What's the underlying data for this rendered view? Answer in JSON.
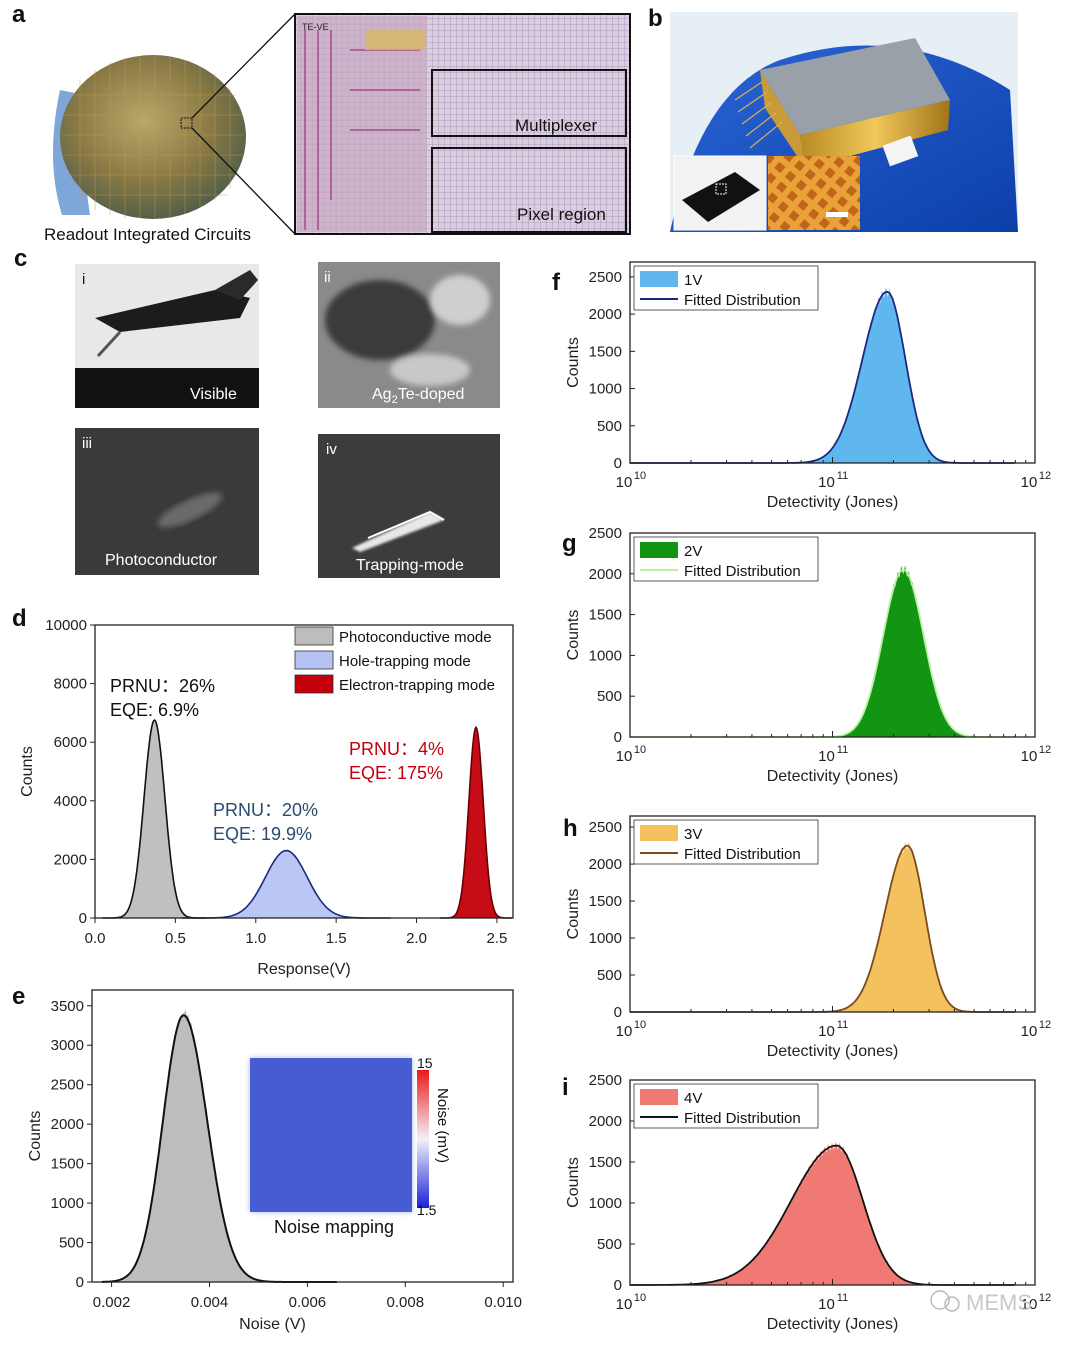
{
  "panels": {
    "a": {
      "label": "a",
      "caption": "Readout Integrated Circuits",
      "box_labels": [
        "Multiplexer",
        "Pixel region"
      ],
      "chip_text": "TE-VE"
    },
    "b": {
      "label": "b"
    },
    "c": {
      "label": "c",
      "images": [
        {
          "roman": "i",
          "caption": "Visible"
        },
        {
          "roman": "ii",
          "caption_pre": "Ag",
          "caption_sub": "2",
          "caption_post": "Te-doped"
        },
        {
          "roman": "iii",
          "caption": "Photoconductor"
        },
        {
          "roman": "iv",
          "caption": "Trapping-mode"
        }
      ]
    },
    "d": {
      "label": "d"
    },
    "e": {
      "label": "e"
    },
    "f": {
      "label": "f"
    },
    "g": {
      "label": "g"
    },
    "h": {
      "label": "h"
    },
    "i": {
      "label": "i"
    }
  },
  "colors": {
    "gray_fill": "#bdbdbd",
    "blue_fill": "#b6c3f2",
    "red_fill": "#c3000b",
    "f_fill": "#5fb7ee",
    "g_fill": "#129512",
    "h_fill": "#f3c25e",
    "i_fill": "#f07a73",
    "f_line": "#1a2a80",
    "g_line": "#b8f2a0",
    "h_line": "#7a4a1c",
    "i_line": "#111111"
  },
  "chart_data": [
    {
      "id": "d",
      "type": "area",
      "xlabel": "Response(V)",
      "ylabel": "Counts",
      "xlim": [
        0.0,
        2.6
      ],
      "ylim": [
        0,
        10000
      ],
      "xticks": [
        "0.0",
        "0.5",
        "1.0",
        "1.5",
        "2.0",
        "2.5"
      ],
      "yticks": [
        "0",
        "2000",
        "4000",
        "6000",
        "8000",
        "10000"
      ],
      "series": [
        {
          "name": "Photoconductive mode",
          "center": 0.37,
          "width": 0.065,
          "peak": 6750
        },
        {
          "name": "Hole-trapping mode",
          "center": 1.19,
          "width": 0.13,
          "peak": 2300
        },
        {
          "name": "Electron-trapping mode",
          "center": 2.37,
          "width": 0.045,
          "peak": 6500
        }
      ],
      "annotations": [
        {
          "line1": "PRNU：26%",
          "line2": "EQE: 6.9%",
          "color": "#111111"
        },
        {
          "line1": "PRNU：20%",
          "line2": "EQE: 19.9%",
          "color": "#2b4a70"
        },
        {
          "line1": "PRNU：4%",
          "line2": "EQE: 175%",
          "color": "#c3000b"
        }
      ]
    },
    {
      "id": "e",
      "type": "area",
      "xlabel": "Noise (V)",
      "ylabel": "Counts",
      "xlim": [
        0.0016,
        0.0102
      ],
      "ylim": [
        0,
        3700
      ],
      "xticks": [
        "0.002",
        "0.004",
        "0.006",
        "0.008",
        "0.010"
      ],
      "yticks": [
        "0",
        "500",
        "1000",
        "1500",
        "2000",
        "2500",
        "3000",
        "3500"
      ],
      "series": [
        {
          "name": "Noise",
          "center": 0.00347,
          "width": 0.00042,
          "peak": 3380
        }
      ],
      "inset": {
        "title": "Noise mapping",
        "colorbar_max": "15",
        "colorbar_min": "1.5",
        "colorbar_label": "Noise (mV)"
      }
    },
    {
      "id": "f",
      "type": "area",
      "xlabel": "Detectivity (Jones)",
      "ylabel": "Counts",
      "xlim_log10": [
        10,
        12
      ],
      "ylim": [
        0,
        2700
      ],
      "xticks": [
        "10",
        "11",
        "12"
      ],
      "yticks": [
        "0",
        "500",
        "1000",
        "1500",
        "2000",
        "2500"
      ],
      "series": [
        {
          "name": "1V",
          "center_log10": 11.27,
          "width": 0.09,
          "peak": 2300,
          "skew": 0.6
        }
      ],
      "legend": [
        "1V",
        "Fitted Distribution"
      ]
    },
    {
      "id": "g",
      "type": "area",
      "xlabel": "Detectivity (Jones)",
      "ylabel": "Counts",
      "xlim_log10": [
        10,
        12
      ],
      "ylim": [
        0,
        2500
      ],
      "xticks": [
        "10",
        "11",
        "12"
      ],
      "yticks": [
        "0",
        "500",
        "1000",
        "1500",
        "2000",
        "2500"
      ],
      "series": [
        {
          "name": "2V",
          "center_log10": 11.35,
          "width": 0.1,
          "peak": 2050,
          "skew": 0
        }
      ],
      "legend": [
        "2V",
        "Fitted Distribution"
      ]
    },
    {
      "id": "h",
      "type": "area",
      "xlabel": "Detectivity (Jones)",
      "ylabel": "Counts",
      "xlim_log10": [
        10,
        12
      ],
      "ylim": [
        0,
        2650
      ],
      "xticks": [
        "10",
        "11",
        "12"
      ],
      "yticks": [
        "0",
        "500",
        "1000",
        "1500",
        "2000",
        "2500"
      ],
      "series": [
        {
          "name": "3V",
          "center_log10": 11.37,
          "width": 0.085,
          "peak": 2250,
          "skew": 0.5
        }
      ],
      "legend": [
        "3V",
        "Fitted Distribution"
      ]
    },
    {
      "id": "i",
      "type": "area",
      "xlabel": "Detectivity (Jones)",
      "ylabel": "Counts",
      "xlim_log10": [
        10,
        12
      ],
      "ylim": [
        0,
        2500
      ],
      "xticks": [
        "10",
        "11",
        "12"
      ],
      "yticks": [
        "0",
        "500",
        "1000",
        "1500",
        "2000",
        "2500"
      ],
      "series": [
        {
          "name": "4V",
          "center_log10": 11.02,
          "width": 0.13,
          "peak": 1700,
          "skew": 1.2
        }
      ],
      "legend": [
        "4V",
        "Fitted Distribution"
      ]
    }
  ],
  "watermark": "MEMS"
}
